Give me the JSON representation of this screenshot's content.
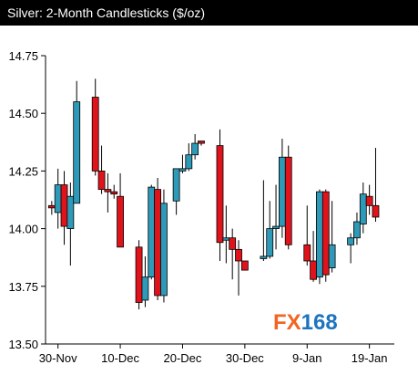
{
  "chart_data": {
    "type": "candlestick",
    "title": "Silver: 2-Month Candlesticks ($/oz)",
    "xlabel": "",
    "ylabel": "",
    "ylim": [
      13.5,
      14.75
    ],
    "y_ticks": [
      "14.75",
      "14.50",
      "14.25",
      "14.00",
      "13.75",
      "13.50"
    ],
    "x_ticks": [
      {
        "label": "30-Nov",
        "x": 2
      },
      {
        "label": "10-Dec",
        "x": 12
      },
      {
        "label": "20-Dec",
        "x": 22
      },
      {
        "label": "30-Dec",
        "x": 32
      },
      {
        "label": "9-Jan",
        "x": 42
      },
      {
        "label": "19-Jan",
        "x": 52
      }
    ],
    "x_range": [
      0,
      56
    ],
    "grid": false,
    "legend": "none",
    "up_color": "#2e9ab8",
    "down_color": "#e0131b",
    "candles": [
      {
        "x": 1,
        "open": 14.1,
        "high": 14.12,
        "low": 14.06,
        "close": 14.09
      },
      {
        "x": 2,
        "open": 14.07,
        "high": 14.26,
        "low": 14.0,
        "close": 14.19
      },
      {
        "x": 3,
        "open": 14.19,
        "high": 14.25,
        "low": 13.93,
        "close": 14.01
      },
      {
        "x": 4,
        "open": 14.0,
        "high": 14.2,
        "low": 13.84,
        "close": 14.14
      },
      {
        "x": 5,
        "open": 14.11,
        "high": 14.64,
        "low": 14.11,
        "close": 14.55
      },
      {
        "x": 8,
        "open": 14.57,
        "high": 14.65,
        "low": 14.23,
        "close": 14.25
      },
      {
        "x": 9,
        "open": 14.25,
        "high": 14.36,
        "low": 14.15,
        "close": 14.17
      },
      {
        "x": 10,
        "open": 14.17,
        "high": 14.24,
        "low": 14.07,
        "close": 14.16
      },
      {
        "x": 11,
        "open": 14.16,
        "high": 14.19,
        "low": 14.13,
        "close": 14.15
      },
      {
        "x": 12,
        "open": 14.14,
        "high": 14.24,
        "low": 13.92,
        "close": 13.92
      },
      {
        "x": 15,
        "open": 13.92,
        "high": 13.95,
        "low": 13.65,
        "close": 13.68
      },
      {
        "x": 16,
        "open": 13.69,
        "high": 13.88,
        "low": 13.66,
        "close": 13.79
      },
      {
        "x": 17,
        "open": 13.79,
        "high": 14.19,
        "low": 13.78,
        "close": 14.18
      },
      {
        "x": 18,
        "open": 14.17,
        "high": 14.22,
        "low": 13.69,
        "close": 13.71
      },
      {
        "x": 19,
        "open": 13.71,
        "high": 14.17,
        "low": 13.68,
        "close": 14.11
      },
      {
        "x": 21,
        "open": 14.12,
        "high": 14.26,
        "low": 14.06,
        "close": 14.26
      },
      {
        "x": 22,
        "open": 14.25,
        "high": 14.32,
        "low": 14.24,
        "close": 14.26
      },
      {
        "x": 23,
        "open": 14.26,
        "high": 14.37,
        "low": 14.25,
        "close": 14.32
      },
      {
        "x": 24,
        "open": 14.32,
        "high": 14.41,
        "low": 14.3,
        "close": 14.37
      },
      {
        "x": 25,
        "open": 14.38,
        "high": 14.38,
        "low": 14.36,
        "close": 14.37
      },
      {
        "x": 28,
        "open": 14.36,
        "high": 14.43,
        "low": 13.86,
        "close": 13.94
      },
      {
        "x": 29,
        "open": 13.95,
        "high": 14.1,
        "low": 13.85,
        "close": 13.96
      },
      {
        "x": 30,
        "open": 13.96,
        "high": 14.0,
        "low": 13.78,
        "close": 13.91
      },
      {
        "x": 31,
        "open": 13.91,
        "high": 13.95,
        "low": 13.71,
        "close": 13.86
      },
      {
        "x": 32,
        "open": 13.86,
        "high": 13.86,
        "low": 13.82,
        "close": 13.82
      },
      {
        "x": 35,
        "open": 13.87,
        "high": 14.21,
        "low": 13.86,
        "close": 13.88
      },
      {
        "x": 36,
        "open": 13.88,
        "high": 14.12,
        "low": 13.87,
        "close": 14.0
      },
      {
        "x": 37,
        "open": 14.0,
        "high": 14.19,
        "low": 13.91,
        "close": 14.01
      },
      {
        "x": 38,
        "open": 14.01,
        "high": 14.39,
        "low": 13.96,
        "close": 14.31
      },
      {
        "x": 39,
        "open": 14.31,
        "high": 14.36,
        "low": 13.91,
        "close": 13.93
      },
      {
        "x": 42,
        "open": 13.93,
        "high": 14.1,
        "low": 13.84,
        "close": 13.86
      },
      {
        "x": 43,
        "open": 13.86,
        "high": 13.99,
        "low": 13.77,
        "close": 13.78
      },
      {
        "x": 44,
        "open": 13.79,
        "high": 14.17,
        "low": 13.76,
        "close": 14.16
      },
      {
        "x": 45,
        "open": 14.16,
        "high": 14.17,
        "low": 13.77,
        "close": 13.8
      },
      {
        "x": 46,
        "open": 13.83,
        "high": 14.12,
        "low": 13.81,
        "close": 13.93
      },
      {
        "x": 49,
        "open": 13.93,
        "high": 13.98,
        "low": 13.85,
        "close": 13.96
      },
      {
        "x": 50,
        "open": 13.96,
        "high": 14.07,
        "low": 13.93,
        "close": 14.03
      },
      {
        "x": 51,
        "open": 14.02,
        "high": 14.2,
        "low": 13.98,
        "close": 14.15
      },
      {
        "x": 52,
        "open": 14.14,
        "high": 14.19,
        "low": 14.06,
        "close": 14.1
      },
      {
        "x": 53,
        "open": 14.1,
        "high": 14.35,
        "low": 14.03,
        "close": 14.05
      }
    ]
  },
  "logo": {
    "text_fx": "FX",
    "text_num": "168",
    "fx_color": "#f26522",
    "num_color": "#1e73be"
  }
}
